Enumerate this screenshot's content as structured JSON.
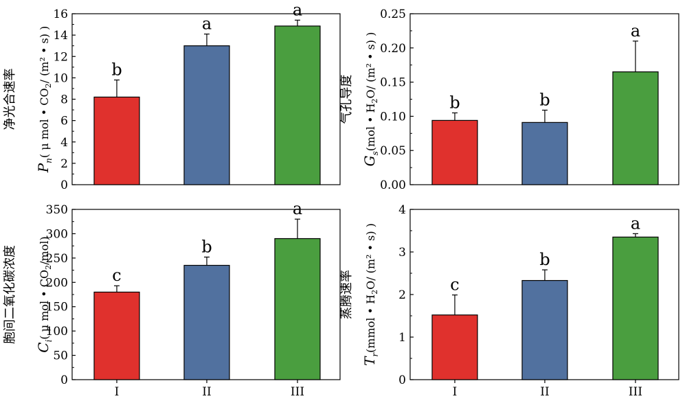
{
  "chart_data": [
    {
      "type": "bar",
      "ylabel_cn": "净光合速率",
      "ylabel_symbol": "P",
      "ylabel_sub": "n",
      "ylabel_unit_pre": "( μ mol • CO",
      "ylabel_unit_sub": "2",
      "ylabel_unit_post": "/ (m² • s) )",
      "categories": [
        "I",
        "II",
        "III"
      ],
      "values": [
        8.2,
        13.0,
        14.85
      ],
      "errors": [
        1.6,
        1.1,
        0.55
      ],
      "letters": [
        "b",
        "a",
        "a"
      ],
      "ylim": [
        0,
        16
      ],
      "yticks": [
        "0",
        "2",
        "4",
        "6",
        "8",
        "10",
        "12",
        "14",
        "16"
      ]
    },
    {
      "type": "bar",
      "ylabel_cn": "气孔导度",
      "ylabel_symbol": "G",
      "ylabel_sub": "s",
      "ylabel_unit_pre": "(mol • H",
      "ylabel_unit_sub": "2",
      "ylabel_unit_post": "O/ (m² • s) )",
      "categories": [
        "I",
        "II",
        "III"
      ],
      "values": [
        0.094,
        0.091,
        0.165
      ],
      "errors": [
        0.011,
        0.018,
        0.045
      ],
      "letters": [
        "b",
        "b",
        "a"
      ],
      "ylim": [
        0,
        0.25
      ],
      "yticks": [
        "0.00",
        "0.05",
        "0.10",
        "0.15",
        "0.20",
        "0.25"
      ]
    },
    {
      "type": "bar",
      "ylabel_cn": "胞间二氧化碳浓度",
      "ylabel_symbol": "C",
      "ylabel_sub": "i",
      "ylabel_unit_pre": "( μ mol • CO",
      "ylabel_unit_sub": "2",
      "ylabel_unit_post": "/mol)",
      "categories": [
        "I",
        "II",
        "III"
      ],
      "values": [
        180,
        235,
        290
      ],
      "errors": [
        13,
        17,
        40
      ],
      "letters": [
        "c",
        "b",
        "a"
      ],
      "ylim": [
        0,
        350
      ],
      "yticks": [
        "0",
        "50",
        "100",
        "150",
        "200",
        "250",
        "300",
        "350"
      ]
    },
    {
      "type": "bar",
      "ylabel_cn": "蒸腾速率",
      "ylabel_symbol": "T",
      "ylabel_sub": "r",
      "ylabel_unit_pre": "(mmol • H",
      "ylabel_unit_sub": "2",
      "ylabel_unit_post": "O/ (m² • s) )",
      "categories": [
        "I",
        "II",
        "III"
      ],
      "values": [
        1.52,
        2.33,
        3.35
      ],
      "errors": [
        0.47,
        0.25,
        0.08
      ],
      "letters": [
        "c",
        "b",
        "a"
      ],
      "ylim": [
        0,
        4
      ],
      "yticks": [
        "0",
        "1",
        "2",
        "3",
        "4"
      ]
    }
  ],
  "colors": [
    "#e0312d",
    "#51719f",
    "#4a9e3f"
  ]
}
